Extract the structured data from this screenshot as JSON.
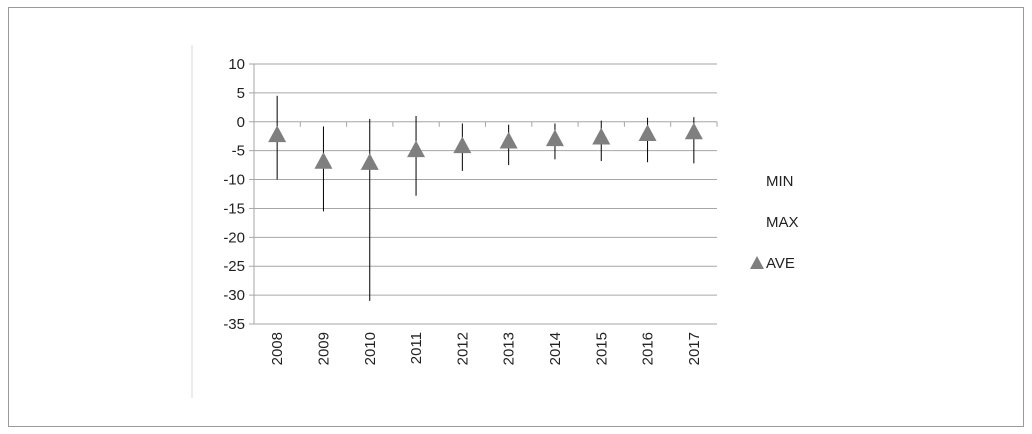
{
  "chart_data": {
    "type": "scatter",
    "categories": [
      "2008",
      "2009",
      "2010",
      "2011",
      "2012",
      "2013",
      "2014",
      "2015",
      "2016",
      "2017"
    ],
    "series": [
      {
        "name": "MIN",
        "values": [
          -10,
          -15.5,
          -31,
          -12.8,
          -8.5,
          -7.5,
          -6.5,
          -6.8,
          -7,
          -7.2
        ]
      },
      {
        "name": "MAX",
        "values": [
          4.5,
          -0.8,
          0.5,
          1,
          -0.3,
          -0.5,
          -0.3,
          0.2,
          0.7,
          0.8
        ]
      },
      {
        "name": "AVE",
        "values": [
          -2.2,
          -6.8,
          -7,
          -4.8,
          -4.1,
          -3.3,
          -2.9,
          -2.6,
          -2,
          -1.7
        ]
      }
    ],
    "ylim": [
      -35,
      10
    ],
    "yticks": [
      10,
      5,
      0,
      -5,
      -10,
      -15,
      -20,
      -25,
      -30,
      -35
    ],
    "grid": true,
    "legend": "right",
    "colors": {
      "marker": "#7f7f7f",
      "line": "#000000",
      "grid": "#a6a6a6",
      "axis": "#a6a6a6"
    }
  }
}
